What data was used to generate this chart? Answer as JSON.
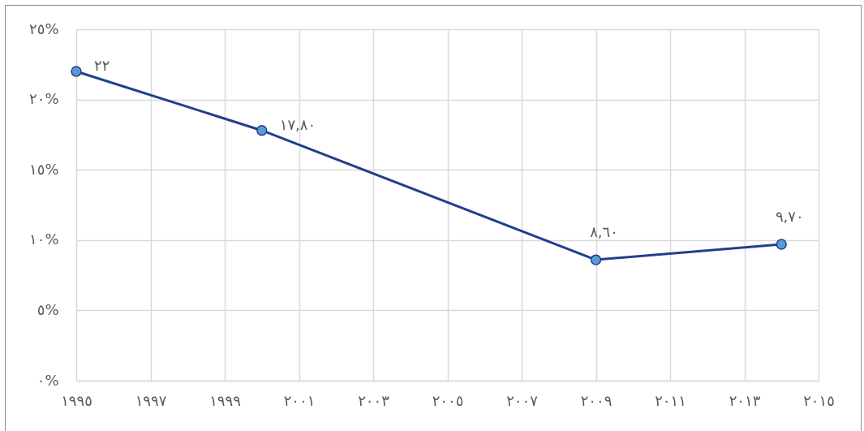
{
  "chart_data": {
    "type": "line",
    "x": [
      1995,
      2000,
      2009,
      2014
    ],
    "series": [
      {
        "color": "#203f8c",
        "values": [
          22,
          17.8,
          8.6,
          9.7
        ],
        "value_labels": [
          "٢٢",
          "١٧,٨٠",
          "٨,٦٠",
          "٩,٧٠"
        ]
      }
    ],
    "xlim": [
      1995,
      2015
    ],
    "xticks": [
      {
        "value": 1995,
        "label": "١٩٩٥"
      },
      {
        "value": 1997,
        "label": "١٩٩٧"
      },
      {
        "value": 1999,
        "label": "١٩٩٩"
      },
      {
        "value": 2001,
        "label": "٢٠٠١"
      },
      {
        "value": 2003,
        "label": "٢٠٠٣"
      },
      {
        "value": 2005,
        "label": "٢٠٠٥"
      },
      {
        "value": 2007,
        "label": "٢٠٠٧"
      },
      {
        "value": 2009,
        "label": "٢٠٠٩"
      },
      {
        "value": 2011,
        "label": "٢٠١١"
      },
      {
        "value": 2013,
        "label": "٢٠١٣"
      },
      {
        "value": 2015,
        "label": "٢٠١٥"
      }
    ],
    "ylim": [
      0,
      25
    ],
    "yticks": [
      {
        "value": 0,
        "label": "٠%"
      },
      {
        "value": 5,
        "label": "٥%"
      },
      {
        "value": 10,
        "label": "١٠%"
      },
      {
        "value": 15,
        "label": "١٥%"
      },
      {
        "value": 20,
        "label": "٢٠%"
      },
      {
        "value": 25,
        "label": "٢٥%"
      }
    ],
    "grid": true,
    "marker": "circle",
    "line_style": "solid"
  }
}
